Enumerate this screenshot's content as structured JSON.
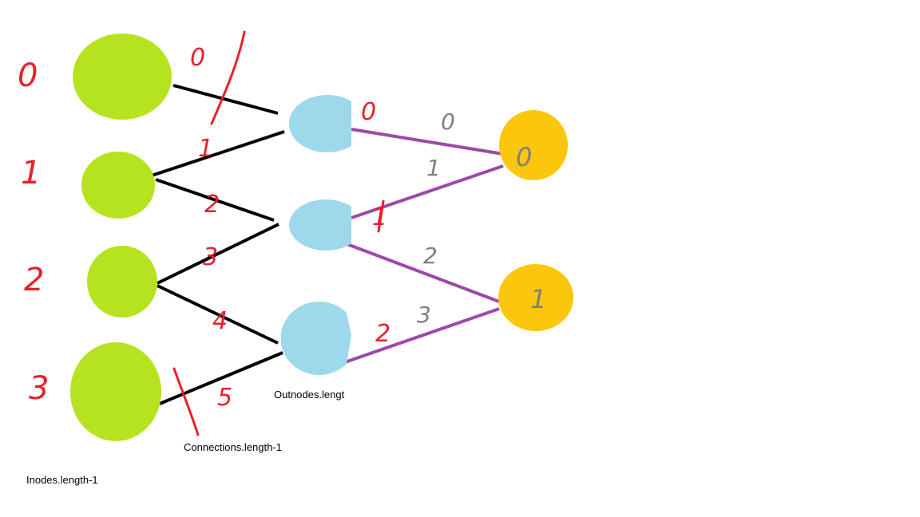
{
  "colors": {
    "input_node": "#b5e31f",
    "hidden_node": "#9dd9ea",
    "output_node": "#fcc60c",
    "input_line": "#000000",
    "output_line": "#9b4aa8",
    "red_ink": "#e8202a",
    "gray_ink": "#808080"
  },
  "labels": {
    "inodes": "Inodes.length-1",
    "connections": "Connections.length-1",
    "outnodes": "Outnodes.lengt"
  },
  "input_node_indices": [
    "0",
    "1",
    "2",
    "3"
  ],
  "input_connection_indices": [
    "0",
    "1",
    "2",
    "3",
    "4",
    "5"
  ],
  "hidden_node_indices": [
    "0",
    "1",
    "2"
  ],
  "output_connection_indices": [
    "0",
    "1",
    "2",
    "3"
  ],
  "output_node_indices": [
    "0",
    "1"
  ]
}
